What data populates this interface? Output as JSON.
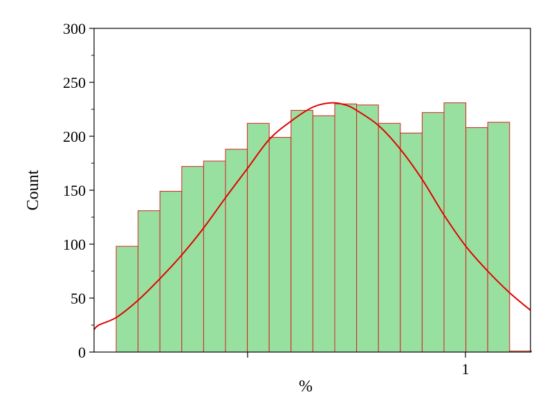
{
  "chart_data": {
    "type": "bar",
    "xlabel": "%",
    "ylabel": "Count",
    "ylim": [
      0,
      300
    ],
    "y_ticks": [
      0,
      50,
      100,
      150,
      200,
      250,
      300
    ],
    "x_tick_labels": [
      "",
      "1"
    ],
    "grid": false,
    "colors": {
      "bar_fill": "#98e0a0",
      "bar_edge": "#d42020",
      "curve": "#e00000",
      "axis": "#000000"
    },
    "series": [
      {
        "type": "histogram",
        "bin_index": [
          1,
          2,
          3,
          4,
          5,
          6,
          7,
          8,
          9,
          10,
          11,
          12,
          13,
          14,
          15,
          16,
          17,
          18,
          19
        ],
        "values": [
          98,
          131,
          149,
          172,
          177,
          188,
          212,
          199,
          224,
          219,
          230,
          229,
          212,
          203,
          222,
          231,
          208,
          213,
          1
        ]
      },
      {
        "type": "line",
        "description": "fitted normal curve",
        "bin_index": [
          -0.04,
          0.2,
          1.0,
          2.0,
          3.0,
          4.0,
          5.0,
          6.0,
          7.0,
          8.0,
          9.0,
          10.0,
          10.85,
          11.5,
          12.0,
          13.0,
          14.0,
          15.0,
          16.0,
          17.0,
          18.0,
          19.0,
          20.0
        ],
        "values": [
          20,
          25,
          32,
          48,
          68,
          90,
          115,
          143,
          170,
          197,
          214,
          227,
          231,
          229,
          224,
          210,
          188,
          160,
          127,
          98,
          75,
          55,
          38
        ]
      }
    ]
  }
}
